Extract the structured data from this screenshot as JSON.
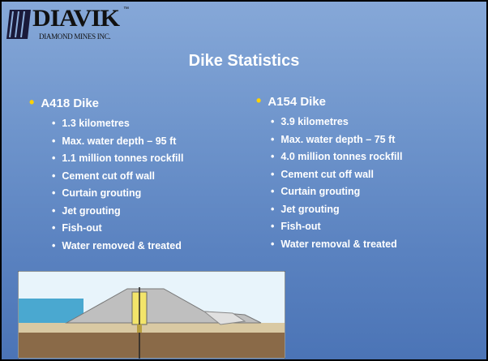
{
  "logo": {
    "name": "DIAVIK",
    "trademark": "™",
    "subtitle": "DIAMOND MINES INC."
  },
  "title": "Dike Statistics",
  "columns": [
    {
      "heading": "A418 Dike",
      "items": [
        "1.3 kilometres",
        "Max. water depth – 95 ft",
        "1.1 million tonnes rockfill",
        "Cement cut off wall",
        "Curtain grouting",
        "Jet grouting",
        "Fish-out",
        "Water removed & treated"
      ]
    },
    {
      "heading": "A154 Dike",
      "items": [
        "3.9 kilometres",
        "Max. water depth – 75 ft",
        "4.0 million tonnes rockfill",
        "Cement cut off wall",
        "Curtain grouting",
        "Jet grouting",
        "Fish-out",
        "Water removal & treated"
      ]
    }
  ]
}
